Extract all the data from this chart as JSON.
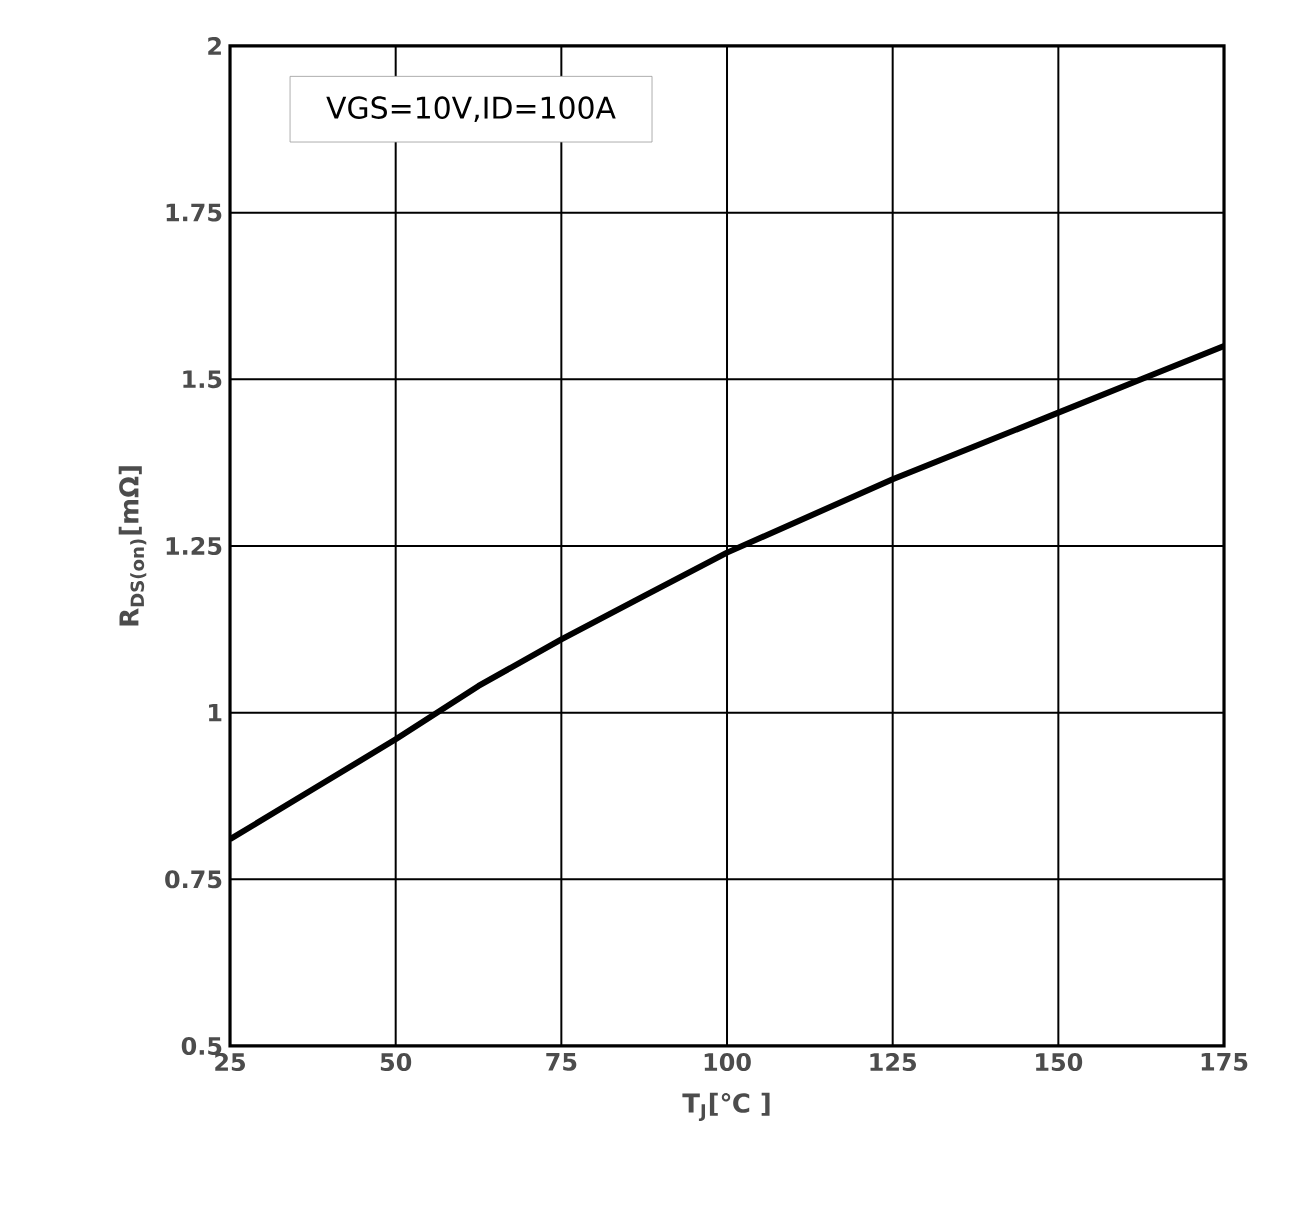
{
  "chart_data": {
    "type": "line",
    "xlabel": "T$_{J}$[℃ ]",
    "ylabel": "R$_{DS(on)}$[mΩ]",
    "annotations": [
      "VGS=10V,ID=100A"
    ],
    "x": [
      25,
      37.5,
      50,
      62.5,
      75,
      87.5,
      100,
      112.5,
      125,
      137.5,
      150,
      162.5,
      175
    ],
    "series": [
      {
        "color": "#000000",
        "values": [
          0.81,
          0.885,
          0.96,
          1.04,
          1.11,
          1.175,
          1.24,
          1.295,
          1.35,
          1.4,
          1.45,
          1.5,
          1.55
        ]
      }
    ],
    "xlim": [
      25,
      175
    ],
    "xticks": [
      25,
      50,
      75,
      100,
      125,
      150,
      175
    ],
    "ylim": [
      0.5,
      2
    ],
    "yticks": [
      0.5,
      0.75,
      1,
      1.25,
      1.5,
      1.75,
      2
    ],
    "grid": true,
    "line_style": "solid",
    "marker": "none"
  }
}
